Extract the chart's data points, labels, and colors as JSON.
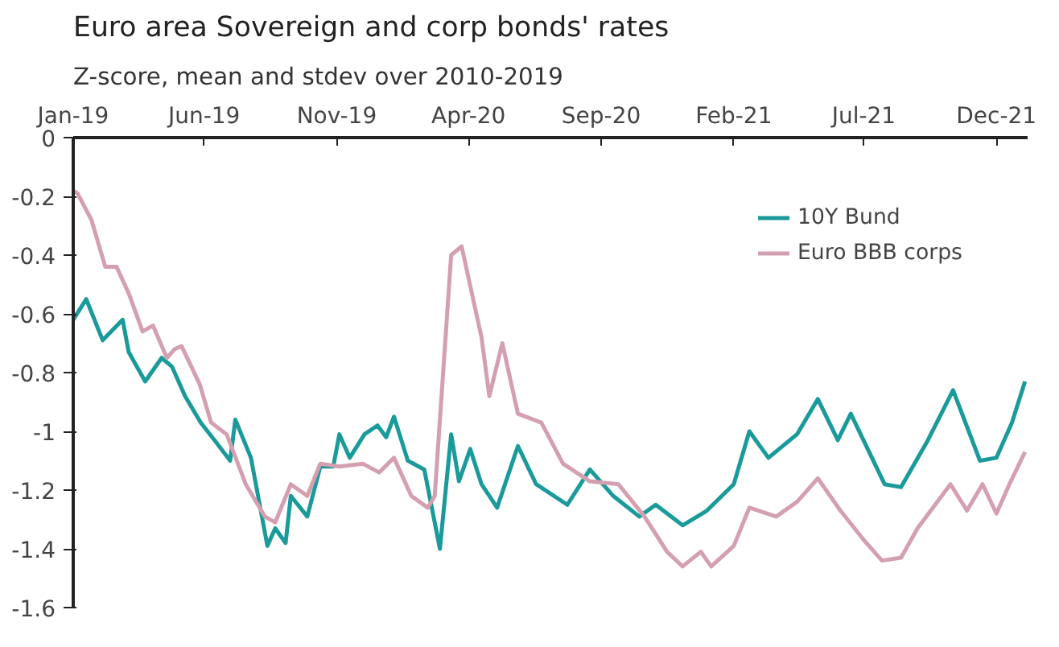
{
  "chart_data": {
    "type": "line",
    "title": "Euro area Sovereign and corp bonds' rates",
    "subtitle": "Z-score, mean and stdev over 2010-2019",
    "xlim": [
      "2019-01-01",
      "2022-01-06"
    ],
    "xticks": [
      {
        "value": "2019-01",
        "label": "Jan-19"
      },
      {
        "value": "2019-06",
        "label": "Jun-19"
      },
      {
        "value": "2019-11",
        "label": "Nov-19"
      },
      {
        "value": "2020-04",
        "label": "Apr-20"
      },
      {
        "value": "2020-09",
        "label": "Sep-20"
      },
      {
        "value": "2021-02",
        "label": "Feb-21"
      },
      {
        "value": "2021-07",
        "label": "Jul-21"
      },
      {
        "value": "2021-12",
        "label": "Dec-21"
      }
    ],
    "ylim": [
      -1.6,
      0
    ],
    "yticks": [
      0,
      -0.2,
      -0.4,
      -0.6,
      -0.8,
      -1,
      -1.2,
      -1.4,
      -1.6
    ],
    "grid": false,
    "legend": "top right",
    "line_style": "solid",
    "marker": "none",
    "series": [
      {
        "name": "10Y Bund",
        "color": "#1a9a9a",
        "x": [
          "2019-01-01",
          "2019-01-16",
          "2019-02-04",
          "2019-02-27",
          "2019-03-06",
          "2019-03-25",
          "2019-04-13",
          "2019-04-25",
          "2019-05-10",
          "2019-05-28",
          "2019-06-13",
          "2019-07-01",
          "2019-07-07",
          "2019-07-25",
          "2019-08-13",
          "2019-08-22",
          "2019-09-03",
          "2019-09-09",
          "2019-09-28",
          "2019-10-13",
          "2019-10-28",
          "2019-11-04",
          "2019-11-16",
          "2019-12-03",
          "2019-12-18",
          "2019-12-28",
          "2020-01-06",
          "2020-01-22",
          "2020-02-10",
          "2020-02-28",
          "2020-03-12",
          "2020-03-21",
          "2020-04-03",
          "2020-04-16",
          "2020-05-04",
          "2020-05-28",
          "2020-06-18",
          "2020-07-24",
          "2020-08-19",
          "2020-09-15",
          "2020-10-15",
          "2020-11-03",
          "2020-12-04",
          "2021-01-01",
          "2021-02-01",
          "2021-02-19",
          "2021-03-13",
          "2021-04-15",
          "2021-05-09",
          "2021-06-01",
          "2021-06-16",
          "2021-07-25",
          "2021-08-13",
          "2021-09-13",
          "2021-10-12",
          "2021-11-12",
          "2021-12-01",
          "2021-12-19",
          "2022-01-03"
        ],
        "values": [
          -0.62,
          -0.55,
          -0.69,
          -0.62,
          -0.73,
          -0.83,
          -0.75,
          -0.78,
          -0.88,
          -0.97,
          -1.03,
          -1.1,
          -0.96,
          -1.09,
          -1.39,
          -1.33,
          -1.38,
          -1.22,
          -1.29,
          -1.12,
          -1.12,
          -1.01,
          -1.09,
          -1.01,
          -0.98,
          -1.02,
          -0.95,
          -1.1,
          -1.13,
          -1.4,
          -1.01,
          -1.17,
          -1.06,
          -1.18,
          -1.26,
          -1.05,
          -1.18,
          -1.25,
          -1.13,
          -1.22,
          -1.29,
          -1.25,
          -1.32,
          -1.27,
          -1.18,
          -1.0,
          -1.09,
          -1.01,
          -0.89,
          -1.03,
          -0.94,
          -1.18,
          -1.19,
          -1.03,
          -0.86,
          -1.1,
          -1.09,
          -0.97,
          -0.83
        ]
      },
      {
        "name": "Euro BBB corps",
        "color": "#d4a0b0",
        "x": [
          "2019-01-01",
          "2019-01-06",
          "2019-01-22",
          "2019-02-07",
          "2019-02-20",
          "2019-03-06",
          "2019-03-22",
          "2019-04-03",
          "2019-04-19",
          "2019-04-28",
          "2019-05-06",
          "2019-05-27",
          "2019-06-09",
          "2019-06-27",
          "2019-07-19",
          "2019-08-10",
          "2019-08-22",
          "2019-09-09",
          "2019-09-28",
          "2019-10-13",
          "2019-11-04",
          "2019-12-01",
          "2019-12-20",
          "2020-01-06",
          "2020-01-26",
          "2020-02-14",
          "2020-02-22",
          "2020-03-12",
          "2020-03-24",
          "2020-04-16",
          "2020-04-25",
          "2020-05-10",
          "2020-05-28",
          "2020-06-24",
          "2020-07-19",
          "2020-08-19",
          "2020-09-21",
          "2020-10-21",
          "2020-11-16",
          "2020-12-04",
          "2020-12-25",
          "2021-01-06",
          "2021-02-01",
          "2021-02-19",
          "2021-03-22",
          "2021-04-15",
          "2021-05-09",
          "2021-06-04",
          "2021-07-01",
          "2021-07-22",
          "2021-08-13",
          "2021-09-01",
          "2021-10-09",
          "2021-10-28",
          "2021-11-15",
          "2021-12-01",
          "2021-12-16",
          "2022-01-03"
        ],
        "values": [
          -0.18,
          -0.19,
          -0.28,
          -0.44,
          -0.44,
          -0.53,
          -0.66,
          -0.64,
          -0.75,
          -0.72,
          -0.71,
          -0.84,
          -0.97,
          -1.01,
          -1.18,
          -1.29,
          -1.31,
          -1.18,
          -1.22,
          -1.11,
          -1.12,
          -1.11,
          -1.14,
          -1.09,
          -1.22,
          -1.26,
          -1.22,
          -0.4,
          -0.37,
          -0.68,
          -0.88,
          -0.7,
          -0.94,
          -0.97,
          -1.11,
          -1.17,
          -1.18,
          -1.29,
          -1.41,
          -1.46,
          -1.41,
          -1.46,
          -1.39,
          -1.26,
          -1.29,
          -1.24,
          -1.16,
          -1.27,
          -1.37,
          -1.44,
          -1.43,
          -1.33,
          -1.18,
          -1.27,
          -1.18,
          -1.28,
          -1.18,
          -1.07
        ]
      }
    ]
  }
}
